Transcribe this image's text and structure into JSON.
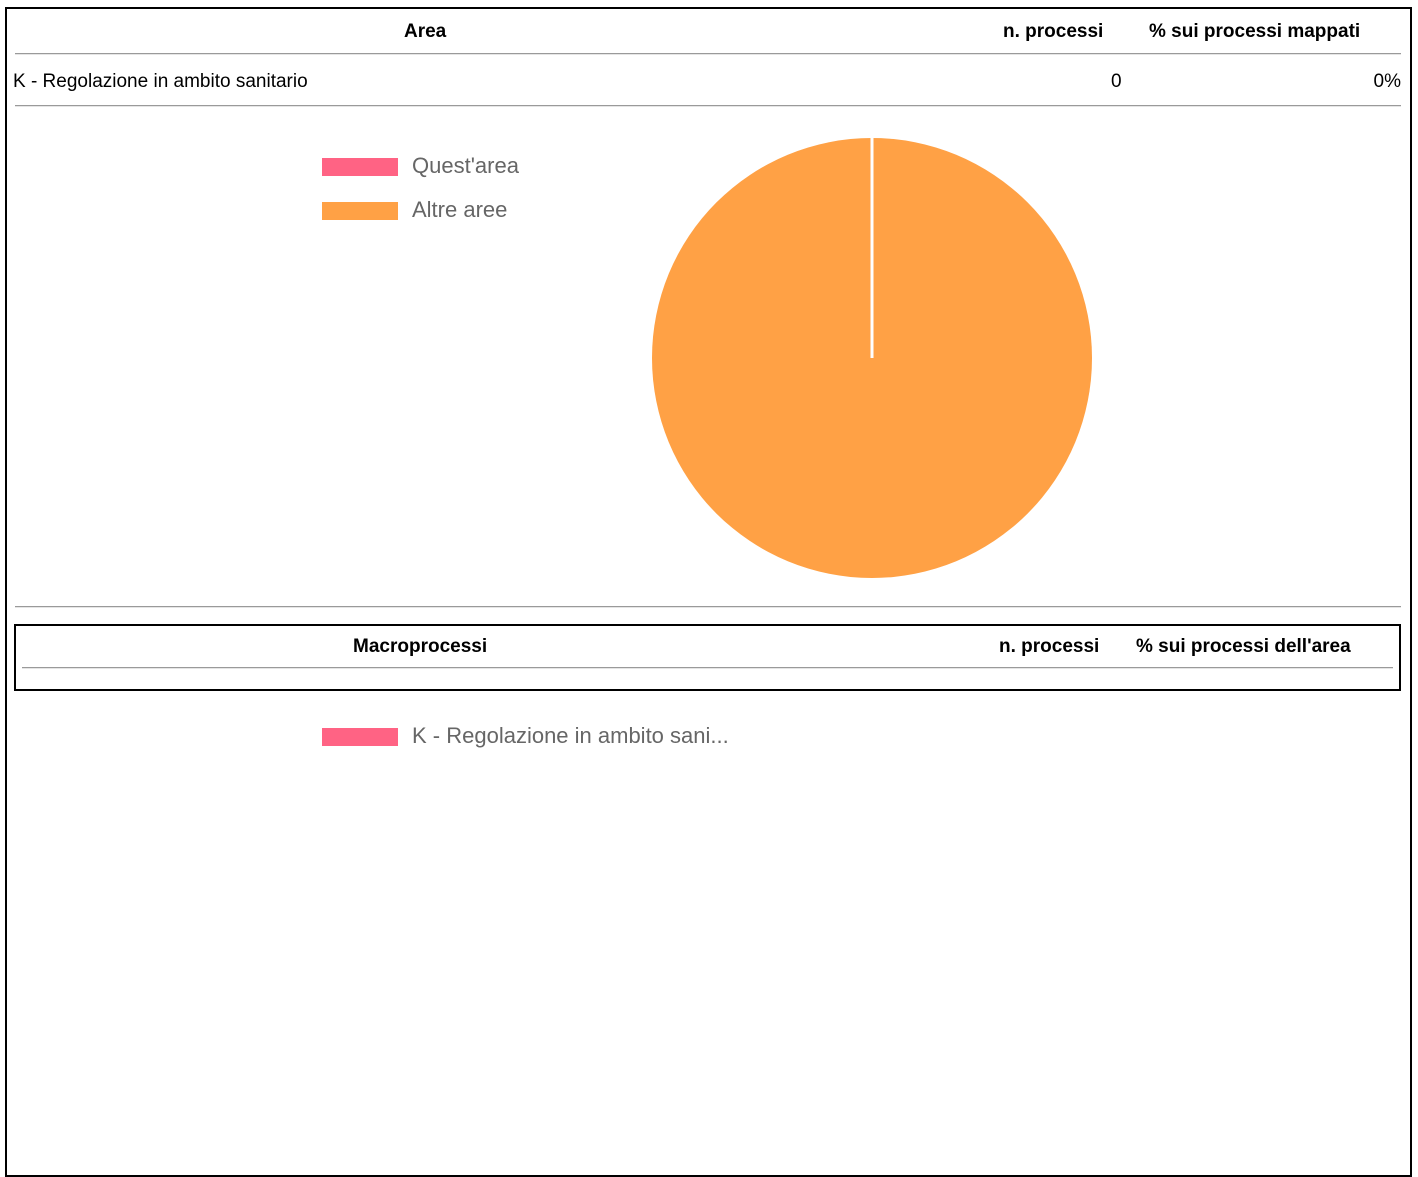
{
  "area_table": {
    "headers": {
      "area": "Area",
      "n_processi": "n. processi",
      "pct": "% sui processi mappati"
    },
    "rows": [
      {
        "area": "K - Regolazione in ambito sanitario",
        "n_processi": "0",
        "pct": "0%"
      }
    ]
  },
  "chart_data": [
    {
      "type": "pie",
      "legend_position": "top-left",
      "categories": [
        "Quest'area",
        "Altre aree"
      ],
      "values": [
        0,
        100
      ],
      "colors": [
        "#ff6384",
        "#ffa145"
      ]
    },
    {
      "type": "pie",
      "legend_position": "top-left",
      "categories": [
        "K - Regolazione in ambito sani..."
      ],
      "values": [
        0
      ],
      "colors": [
        "#ff6384"
      ]
    }
  ],
  "macro_table": {
    "headers": {
      "macroprocessi": "Macroprocessi",
      "n_processi": "n. processi",
      "pct": "% sui processi dell'area"
    }
  }
}
